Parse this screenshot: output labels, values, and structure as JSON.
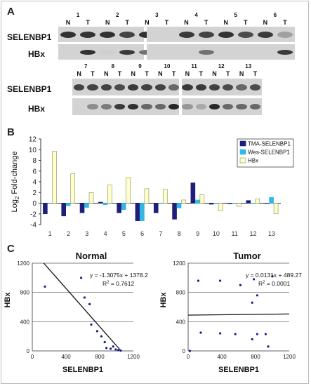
{
  "panel_labels": {
    "a": "A",
    "b": "B",
    "c": "C"
  },
  "blot": {
    "row_labels": {
      "selenbp1": "SELENBP1",
      "hbx": "HBx"
    },
    "lane_labels": {
      "n": "N",
      "t": "T"
    },
    "top_pairs": [
      "1",
      "2",
      "3",
      "4",
      "5",
      "6"
    ],
    "bottom_pairs": [
      "7",
      "8",
      "9",
      "10",
      "11",
      "12",
      "13"
    ],
    "band_intensity": {
      "top_selenbp1": [
        0.9,
        0.88,
        0.9,
        0.8,
        0.9,
        0.85,
        0.85,
        0.8,
        0.9,
        0.75,
        0.85,
        0.3
      ],
      "top_hbx": [
        0.0,
        0.9,
        0.05,
        0.85,
        0.55,
        0.85,
        0.0,
        0.55,
        0.0,
        0.0,
        0.0,
        0.85
      ],
      "bottom_selenbp1": [
        0.8,
        0.8,
        0.8,
        0.75,
        0.85,
        0.8,
        0.8,
        0.6,
        0.85,
        0.85,
        0.8,
        0.75,
        0.6,
        0.75
      ],
      "bottom_hbx": [
        0.0,
        0.4,
        0.5,
        0.85,
        0.9,
        0.6,
        0.6,
        0.95,
        0.35,
        0.25,
        0.95,
        0.6,
        0.6,
        0.6
      ]
    }
  },
  "chart_data": [
    {
      "type": "bar",
      "ylabel": "Log2 Fold-change",
      "categories": [
        "1",
        "2",
        "3",
        "4",
        "5",
        "6",
        "7",
        "8",
        "9",
        "10",
        "11",
        "12",
        "13"
      ],
      "ylim": [
        -4,
        12
      ],
      "yticks": [
        "-4",
        "-2",
        "0",
        "2",
        "4",
        "6",
        "8",
        "10",
        "12"
      ],
      "series": [
        {
          "name": "TMA-SELENBP1",
          "color": "#1f1f7a",
          "values": [
            -2.0,
            -2.4,
            -1.8,
            0.2,
            -1.8,
            -3.3,
            -1.8,
            -3.0,
            3.8,
            -0.2,
            -0.1,
            0.5,
            0.0
          ]
        },
        {
          "name": "Wes-SELENBP1",
          "color": "#33b8e6",
          "values": [
            0.0,
            -0.5,
            -0.8,
            -0.3,
            -1.2,
            -3.3,
            0.0,
            -0.9,
            0.6,
            0.0,
            0.0,
            0.0,
            1.1
          ]
        },
        {
          "name": "HBx",
          "color": "#ffffcc",
          "values": [
            9.7,
            5.5,
            2.0,
            3.4,
            4.8,
            2.7,
            2.6,
            0.6,
            1.6,
            -1.4,
            -0.6,
            0.8,
            -2.0
          ]
        }
      ],
      "legend": "top-right"
    },
    {
      "type": "scatter",
      "title": "Normal",
      "xlabel": "SELENBP1",
      "ylabel": "HBx",
      "xlim": [
        0,
        1200
      ],
      "ylim": [
        0,
        1200
      ],
      "xticks": [
        "0",
        "400",
        "800",
        "1200"
      ],
      "yticks": [
        "0",
        "400",
        "800",
        "1200"
      ],
      "equation": "y = -1.3075x + 1378.2",
      "r2_prefix": "R",
      "r2_value": " = 0.7612",
      "fit": {
        "slope": -1.3075,
        "intercept": 1378.2
      },
      "points": [
        [
          150,
          880
        ],
        [
          580,
          1000
        ],
        [
          620,
          730
        ],
        [
          680,
          640
        ],
        [
          700,
          360
        ],
        [
          770,
          270
        ],
        [
          820,
          200
        ],
        [
          860,
          120
        ],
        [
          880,
          40
        ],
        [
          930,
          30
        ],
        [
          960,
          60
        ],
        [
          990,
          20
        ],
        [
          1020,
          10
        ],
        [
          1050,
          5
        ]
      ]
    },
    {
      "type": "scatter",
      "title": "Tumor",
      "xlabel": "SELENBP1",
      "ylabel": "HBx",
      "xlim": [
        0,
        1200
      ],
      "ylim": [
        0,
        1200
      ],
      "xticks": [
        "0",
        "400",
        "800",
        "1200"
      ],
      "yticks": [
        "0",
        "400",
        "800",
        "1200"
      ],
      "equation": "y = 0.0131x + 489.27",
      "r2_prefix": "R",
      "r2_value": " = 0.0001",
      "fit": {
        "slope": 0.0131,
        "intercept": 489.27
      },
      "points": [
        [
          20,
          0
        ],
        [
          120,
          960
        ],
        [
          380,
          960
        ],
        [
          620,
          900
        ],
        [
          780,
          980
        ],
        [
          820,
          760
        ],
        [
          760,
          660
        ],
        [
          1000,
          1020
        ],
        [
          150,
          250
        ],
        [
          380,
          240
        ],
        [
          560,
          230
        ],
        [
          760,
          160
        ],
        [
          820,
          230
        ],
        [
          920,
          230
        ],
        [
          950,
          60
        ]
      ]
    }
  ]
}
